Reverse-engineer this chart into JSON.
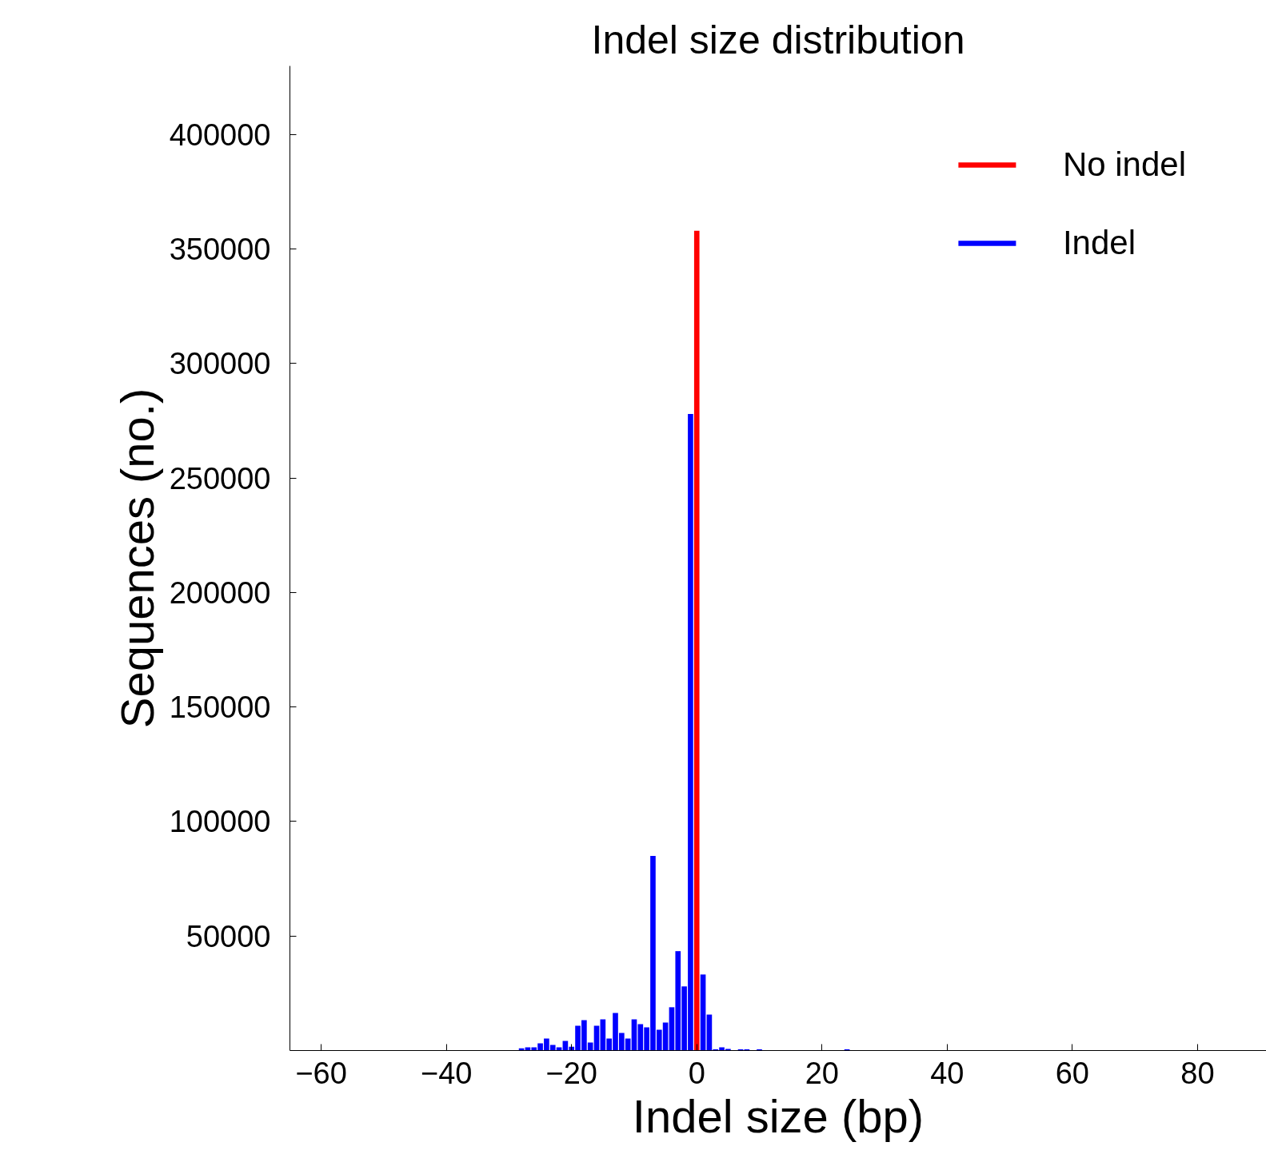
{
  "chart_data": {
    "type": "bar",
    "title": "Indel size distribution",
    "xlabel": "Indel size (bp)",
    "ylabel": "Sequences (no.)",
    "xlim": [
      -65,
      91
    ],
    "ylim": [
      0,
      430000
    ],
    "xticks": [
      {
        "value": -60,
        "label": "−60"
      },
      {
        "value": -40,
        "label": "−40"
      },
      {
        "value": -20,
        "label": "−20"
      },
      0,
      20,
      40,
      60,
      80
    ],
    "yticks": [
      50000,
      100000,
      150000,
      200000,
      250000,
      300000,
      350000,
      400000
    ],
    "grid": false,
    "legend": "top right",
    "series": [
      {
        "name": "No indel",
        "color": "#ff0000",
        "x": [
          0
        ],
        "values": [
          358000
        ]
      },
      {
        "name": "Indel",
        "color": "#0000ff",
        "x": [
          -28,
          -27,
          -26,
          -25,
          -24,
          -23,
          -22,
          -21,
          -20,
          -19,
          -18,
          -17,
          -16,
          -15,
          -14,
          -13,
          -12,
          -11,
          -10,
          -9,
          -8,
          -7,
          -6,
          -5,
          -4,
          -3,
          -2,
          -1,
          1,
          2,
          3,
          4,
          5,
          7,
          8,
          10,
          24
        ],
        "values": [
          1000,
          1400,
          1400,
          3100,
          5200,
          2400,
          1400,
          4200,
          1700,
          10800,
          13300,
          3500,
          10800,
          13600,
          5200,
          16400,
          7700,
          5200,
          13600,
          11500,
          10100,
          85000,
          9100,
          12200,
          18900,
          43400,
          28000,
          278000,
          33200,
          15700,
          500,
          1400,
          700,
          500,
          500,
          500,
          500
        ]
      }
    ]
  }
}
